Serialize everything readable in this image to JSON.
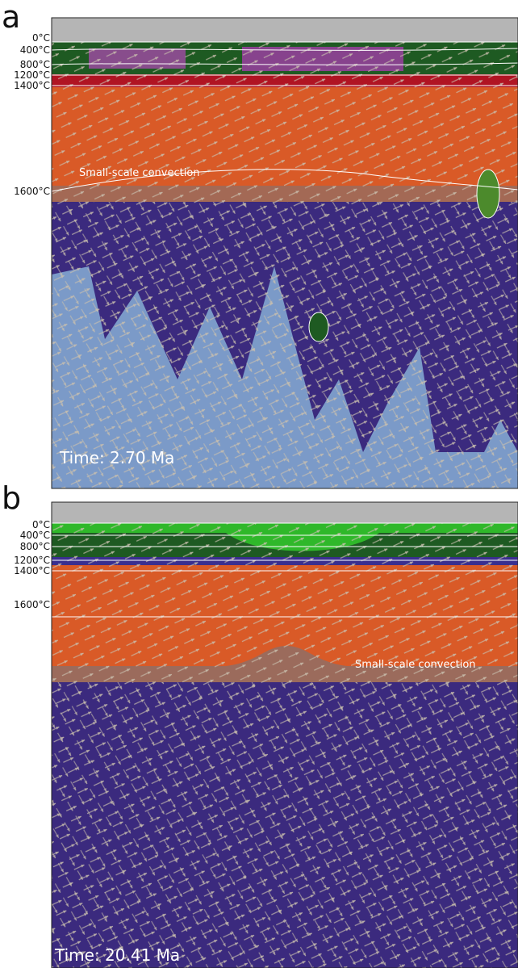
{
  "panels": [
    {
      "label": "a",
      "isotherms": [
        "0°C",
        "400°C",
        "800°C",
        "1200°C",
        "1400°C",
        "1600°C"
      ],
      "annotation": "Small-scale convection",
      "time": "Time: 2.70 Ma"
    },
    {
      "label": "b",
      "isotherms": [
        "0°C",
        "400°C",
        "800°C",
        "1200°C",
        "1400°C",
        "1600°C"
      ],
      "annotation": "Small-scale convection",
      "time": "Time: 20.41 Ma"
    }
  ]
}
